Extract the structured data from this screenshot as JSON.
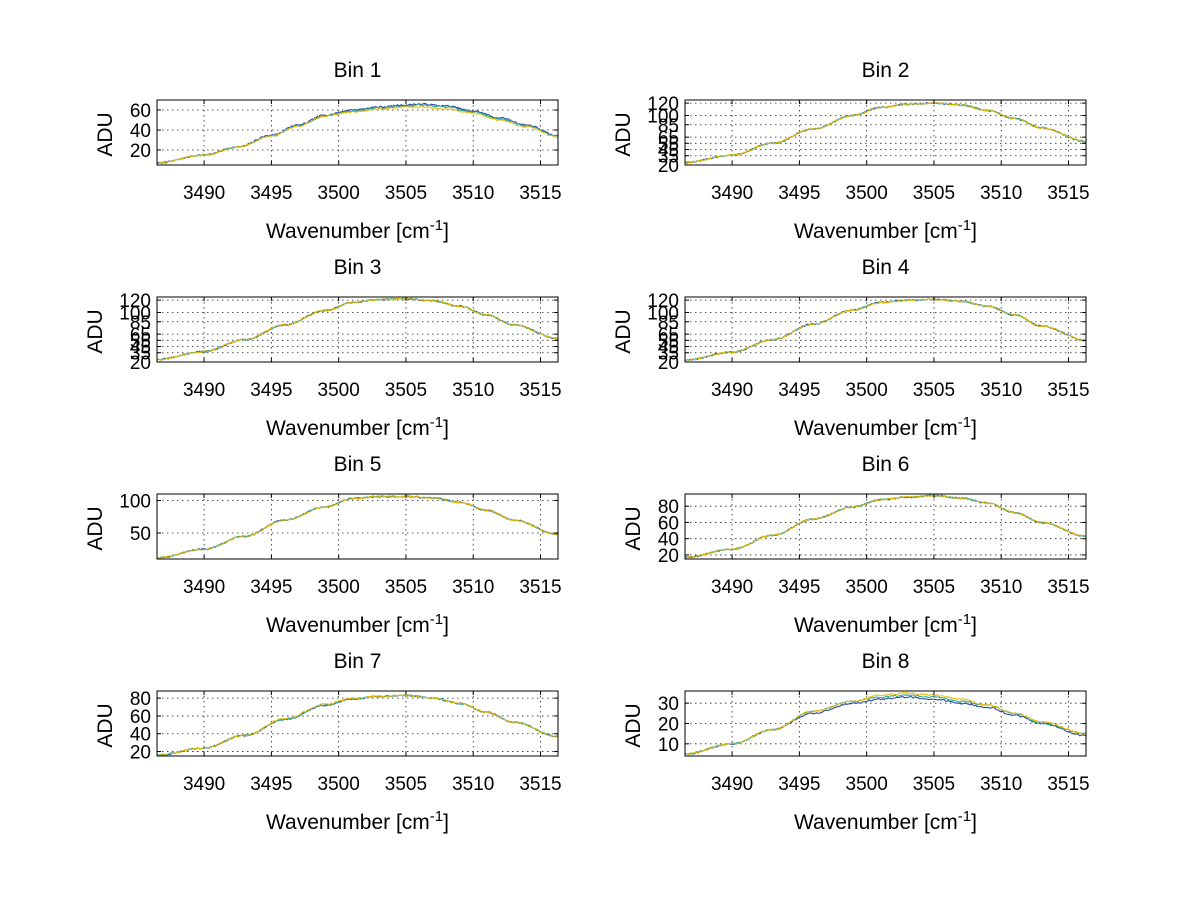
{
  "chart_data": [
    {
      "type": "line",
      "title": "Bin 1",
      "xlabel": "Wavenumber [cm",
      "xlabel_sup": "-1",
      "xlabel_end": "]",
      "ylabel": "ADU",
      "xlim": [
        3486.5,
        3516.3
      ],
      "ylim": [
        5,
        70
      ],
      "xticks": [
        3490,
        3495,
        3500,
        3505,
        3510,
        3515
      ],
      "yticks": [
        20,
        40,
        60
      ],
      "x": [
        3486.5,
        3490,
        3492.5,
        3495,
        3497,
        3499,
        3501,
        3503,
        3505,
        3506,
        3508,
        3510,
        3512,
        3514,
        3516.3
      ],
      "series": [
        {
          "color": "#1f3f9f",
          "values": [
            7,
            15,
            23,
            35,
            45,
            55,
            60,
            63,
            65,
            66,
            64,
            59,
            52,
            45,
            34
          ]
        },
        {
          "color": "#1fa88f",
          "values": [
            7,
            15,
            23,
            34,
            44,
            54,
            59,
            62,
            64,
            65,
            63,
            58,
            51,
            44,
            34
          ]
        },
        {
          "color": "#e8b800",
          "values": [
            7,
            15,
            23,
            34,
            44,
            54,
            58,
            61,
            63,
            63,
            61,
            57,
            50,
            43,
            33
          ]
        }
      ]
    },
    {
      "type": "line",
      "title": "Bin 2",
      "xlabel": "Wavenumber [cm",
      "xlabel_sup": "-1",
      "xlabel_end": "]",
      "ylabel": "ADU",
      "xlim": [
        3486.5,
        3516.3
      ],
      "ylim": [
        20,
        125
      ],
      "xticks": [
        3490,
        3495,
        3500,
        3505,
        3510,
        3515
      ],
      "yticks": [
        20,
        35,
        45,
        55,
        65,
        85,
        100,
        120
      ],
      "ytick_labels": [
        "20",
        "35",
        "45",
        "55",
        "65",
        "85",
        "100",
        "120"
      ],
      "x": [
        3486.5,
        3490,
        3493,
        3496,
        3499,
        3501,
        3503,
        3505,
        3507,
        3509,
        3511,
        3513,
        3516.3
      ],
      "series": [
        {
          "color": "#1f3f9f",
          "values": [
            24,
            36,
            55,
            78,
            100,
            113,
            118,
            120,
            117,
            108,
            95,
            80,
            58
          ]
        },
        {
          "color": "#1fa88f",
          "values": [
            24,
            36,
            55,
            78,
            100,
            113,
            118,
            120,
            117,
            108,
            95,
            80,
            58
          ]
        },
        {
          "color": "#e8b800",
          "values": [
            24,
            36,
            55,
            78,
            100,
            113,
            118,
            120,
            117,
            108,
            95,
            80,
            58
          ]
        }
      ]
    },
    {
      "type": "line",
      "title": "Bin 3",
      "xlabel": "Wavenumber [cm",
      "xlabel_sup": "-1",
      "xlabel_end": "]",
      "ylabel": "ADU",
      "xlim": [
        3486.5,
        3516.3
      ],
      "ylim": [
        20,
        125
      ],
      "xticks": [
        3490,
        3495,
        3500,
        3505,
        3510,
        3515
      ],
      "yticks": [
        20,
        35,
        45,
        55,
        65,
        85,
        100,
        120
      ],
      "ytick_labels": [
        "20",
        "35",
        "45",
        "55",
        "65",
        "85",
        "100",
        "120"
      ],
      "x": [
        3486.5,
        3490,
        3493,
        3496,
        3499,
        3501,
        3503,
        3505,
        3507,
        3509,
        3511,
        3513,
        3516.3
      ],
      "series": [
        {
          "color": "#1f3f9f",
          "values": [
            24,
            37,
            56,
            80,
            103,
            116,
            121,
            122,
            119,
            110,
            96,
            80,
            58
          ]
        },
        {
          "color": "#1fa88f",
          "values": [
            24,
            37,
            56,
            80,
            103,
            116,
            121,
            122,
            119,
            110,
            96,
            80,
            58
          ]
        },
        {
          "color": "#e8b800",
          "values": [
            24,
            37,
            56,
            80,
            103,
            116,
            121,
            122,
            119,
            110,
            96,
            80,
            58
          ]
        }
      ]
    },
    {
      "type": "line",
      "title": "Bin 4",
      "xlabel": "Wavenumber [cm",
      "xlabel_sup": "-1",
      "xlabel_end": "]",
      "ylabel": "ADU",
      "xlim": [
        3486.5,
        3516.3
      ],
      "ylim": [
        20,
        125
      ],
      "xticks": [
        3490,
        3495,
        3500,
        3505,
        3510,
        3515
      ],
      "yticks": [
        20,
        35,
        45,
        55,
        65,
        85,
        100,
        120
      ],
      "ytick_labels": [
        "20",
        "35",
        "45",
        "55",
        "65",
        "85",
        "100",
        "120"
      ],
      "x": [
        3486.5,
        3490,
        3493,
        3496,
        3499,
        3501,
        3503,
        3505,
        3507,
        3509,
        3511,
        3513,
        3516.3
      ],
      "series": [
        {
          "color": "#1f3f9f",
          "values": [
            23,
            36,
            56,
            81,
            104,
            116,
            120,
            121,
            118,
            110,
            96,
            78,
            55
          ]
        },
        {
          "color": "#1fa88f",
          "values": [
            23,
            36,
            56,
            81,
            104,
            116,
            120,
            121,
            118,
            110,
            96,
            78,
            55
          ]
        },
        {
          "color": "#e8b800",
          "values": [
            23,
            36,
            56,
            81,
            104,
            116,
            120,
            121,
            118,
            110,
            96,
            78,
            55
          ]
        }
      ]
    },
    {
      "type": "line",
      "title": "Bin 5",
      "xlabel": "Wavenumber [cm",
      "xlabel_sup": "-1",
      "xlabel_end": "]",
      "ylabel": "ADU",
      "xlim": [
        3486.5,
        3516.3
      ],
      "ylim": [
        10,
        110
      ],
      "xticks": [
        3490,
        3495,
        3500,
        3505,
        3510,
        3515
      ],
      "yticks": [
        50,
        100
      ],
      "x": [
        3486.5,
        3490,
        3493,
        3496,
        3499,
        3501,
        3503,
        3505,
        3507,
        3509,
        3511,
        3513,
        3516.3
      ],
      "series": [
        {
          "color": "#1f3f9f",
          "values": [
            12,
            25,
            45,
            70,
            90,
            103,
            106,
            106,
            104,
            97,
            85,
            70,
            48
          ]
        },
        {
          "color": "#1fa88f",
          "values": [
            12,
            25,
            45,
            70,
            90,
            103,
            106,
            106,
            104,
            97,
            85,
            70,
            48
          ]
        },
        {
          "color": "#e8b800",
          "values": [
            12,
            25,
            45,
            70,
            90,
            103,
            106,
            106,
            104,
            97,
            85,
            70,
            48
          ]
        }
      ]
    },
    {
      "type": "line",
      "title": "Bin 6",
      "xlabel": "Wavenumber [cm",
      "xlabel_sup": "-1",
      "xlabel_end": "]",
      "ylabel": "ADU",
      "xlim": [
        3486.5,
        3516.3
      ],
      "ylim": [
        15,
        95
      ],
      "xticks": [
        3490,
        3495,
        3500,
        3505,
        3510,
        3515
      ],
      "yticks": [
        20,
        40,
        60,
        80
      ],
      "x": [
        3486.5,
        3490,
        3493,
        3496,
        3499,
        3501,
        3503,
        3505,
        3507,
        3509,
        3511,
        3513,
        3516.3
      ],
      "series": [
        {
          "color": "#1f3f9f",
          "values": [
            17,
            27,
            44,
            64,
            79,
            88,
            91,
            93,
            90,
            84,
            72,
            60,
            43
          ]
        },
        {
          "color": "#1fa88f",
          "values": [
            17,
            27,
            44,
            64,
            79,
            88,
            91,
            93,
            90,
            84,
            72,
            60,
            43
          ]
        },
        {
          "color": "#e8b800",
          "values": [
            17,
            27,
            44,
            64,
            79,
            88,
            91,
            93,
            90,
            84,
            72,
            60,
            43
          ]
        }
      ]
    },
    {
      "type": "line",
      "title": "Bin 7",
      "xlabel": "Wavenumber [cm",
      "xlabel_sup": "-1",
      "xlabel_end": "]",
      "ylabel": "ADU",
      "xlim": [
        3486.5,
        3516.3
      ],
      "ylim": [
        15,
        88
      ],
      "xticks": [
        3490,
        3495,
        3500,
        3505,
        3510,
        3515
      ],
      "yticks": [
        20,
        40,
        60,
        80
      ],
      "x": [
        3486.5,
        3490,
        3493,
        3496,
        3499,
        3501,
        3503,
        3505,
        3507,
        3509,
        3511,
        3513,
        3516.3
      ],
      "series": [
        {
          "color": "#1f3f9f",
          "values": [
            16,
            24,
            38,
            56,
            72,
            79,
            82,
            83,
            80,
            74,
            64,
            53,
            37
          ]
        },
        {
          "color": "#1fa88f",
          "values": [
            16,
            24,
            38,
            56,
            72,
            79,
            82,
            83,
            80,
            74,
            64,
            53,
            37
          ]
        },
        {
          "color": "#e8b800",
          "values": [
            16,
            24,
            38,
            57,
            73,
            80,
            82,
            83,
            80,
            74,
            64,
            53,
            37
          ]
        }
      ]
    },
    {
      "type": "line",
      "title": "Bin 8",
      "xlabel": "Wavenumber [cm",
      "xlabel_sup": "-1",
      "xlabel_end": "]",
      "ylabel": "ADU",
      "xlim": [
        3486.5,
        3516.3
      ],
      "ylim": [
        4,
        36
      ],
      "xticks": [
        3490,
        3495,
        3500,
        3505,
        3510,
        3515
      ],
      "yticks": [
        10,
        20,
        30
      ],
      "x": [
        3486.5,
        3490,
        3493,
        3496,
        3499,
        3501,
        3503,
        3505,
        3507,
        3509,
        3511,
        3513,
        3516.3
      ],
      "series": [
        {
          "color": "#1f3f9f",
          "values": [
            5,
            10,
            17,
            25,
            30,
            32,
            33,
            32,
            30,
            28,
            24,
            20,
            14
          ]
        },
        {
          "color": "#1fa88f",
          "values": [
            5,
            10,
            17,
            26,
            31,
            33,
            34,
            33,
            31,
            29,
            25,
            20,
            15
          ]
        },
        {
          "color": "#e8b800",
          "values": [
            5,
            10,
            17,
            26,
            31,
            34,
            35,
            34,
            32,
            29,
            25,
            21,
            15
          ]
        }
      ]
    }
  ]
}
